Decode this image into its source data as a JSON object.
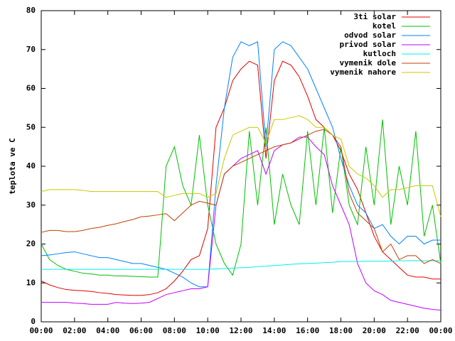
{
  "chart_data": {
    "type": "line",
    "ylabel": "teplota ve C",
    "x": [
      0,
      0.5,
      1,
      1.5,
      2,
      2.5,
      3,
      3.5,
      4,
      4.5,
      5,
      5.5,
      6,
      6.5,
      7,
      7.5,
      8,
      8.5,
      9,
      9.5,
      10,
      10.5,
      11,
      11.5,
      12,
      12.5,
      13,
      13.5,
      14,
      14.5,
      15,
      15.5,
      16,
      16.5,
      17,
      17.5,
      18,
      18.5,
      19,
      19.5,
      20,
      20.5,
      21,
      21.5,
      22,
      22.5,
      23,
      23.5,
      24
    ],
    "xlim": [
      0,
      24
    ],
    "xticks": [
      {
        "value": 0,
        "label": "00:00"
      },
      {
        "value": 2,
        "label": "02:00"
      },
      {
        "value": 4,
        "label": "04:00"
      },
      {
        "value": 6,
        "label": "06:00"
      },
      {
        "value": 8,
        "label": "08:00"
      },
      {
        "value": 10,
        "label": "10:00"
      },
      {
        "value": 12,
        "label": "12:00"
      },
      {
        "value": 14,
        "label": "14:00"
      },
      {
        "value": 16,
        "label": "16:00"
      },
      {
        "value": 18,
        "label": "18:00"
      },
      {
        "value": 20,
        "label": "20:00"
      },
      {
        "value": 22,
        "label": "22:00"
      },
      {
        "value": 24,
        "label": "00:00"
      }
    ],
    "ylim": [
      0,
      80
    ],
    "yticks": [
      0,
      10,
      20,
      30,
      40,
      50,
      60,
      70,
      80
    ],
    "grid": false,
    "legend": "top-right",
    "series": [
      {
        "name": "3ti solar",
        "color": "#e00000",
        "values": [
          10.5,
          9.5,
          8.8,
          8.3,
          8.1,
          8,
          7.8,
          7.5,
          7.3,
          7,
          6.9,
          6.8,
          6.8,
          7,
          7.5,
          8.5,
          10.5,
          13,
          16,
          17,
          24,
          50,
          55,
          62,
          65,
          67,
          66,
          42,
          62,
          67,
          66,
          63,
          58,
          52,
          50,
          48,
          44,
          38,
          34,
          28,
          22,
          18,
          16,
          14,
          12,
          11.5,
          11.5,
          11,
          11
        ]
      },
      {
        "name": "kotel",
        "color": "#00c000",
        "values": [
          20,
          16,
          14.5,
          13.5,
          13,
          12.5,
          12.3,
          12,
          12,
          11.8,
          11.8,
          11.7,
          11.6,
          11.5,
          11.5,
          40,
          45,
          35,
          30,
          48,
          30,
          20,
          15,
          12,
          20,
          49,
          30,
          50,
          25,
          38,
          30,
          25,
          49,
          30,
          50,
          28,
          45,
          30,
          25,
          45,
          30,
          52,
          25,
          40,
          30,
          49,
          22,
          30,
          15
        ]
      },
      {
        "name": "odvod solar",
        "color": "#0080ff",
        "values": [
          17,
          17.2,
          17.5,
          17.8,
          18,
          17.5,
          17,
          16.5,
          16.5,
          16,
          15.5,
          15,
          15,
          14.5,
          14,
          13.5,
          12.5,
          11.5,
          10,
          9,
          9,
          35,
          55,
          68,
          72,
          71,
          72,
          45,
          70,
          72,
          71,
          68,
          65,
          60,
          55,
          50,
          42,
          35,
          30,
          28,
          24,
          25,
          22,
          20,
          22,
          22,
          20,
          21,
          21
        ]
      },
      {
        "name": "privod solar",
        "color": "#c000ff",
        "values": [
          5,
          5,
          5,
          5,
          4.8,
          4.7,
          4.5,
          4.5,
          4.5,
          5,
          4.8,
          4.7,
          4.8,
          5,
          6,
          7,
          7.5,
          8,
          8.5,
          8.5,
          9,
          30,
          38,
          40,
          42,
          43,
          44,
          38,
          44,
          45.5,
          46,
          47.5,
          47.5,
          45,
          43,
          35,
          30,
          25,
          15,
          10,
          8,
          7,
          5.5,
          5,
          4.5,
          4,
          3.5,
          3.2,
          3
        ]
      },
      {
        "name": "kutloch",
        "color": "#00eeee",
        "values": [
          13.5,
          13.5,
          13.5,
          13.5,
          13.5,
          13.5,
          13.5,
          13.5,
          13.5,
          13.5,
          13.5,
          13.5,
          13.5,
          13.5,
          13.5,
          13.5,
          13.5,
          13.5,
          13.5,
          13.5,
          13.5,
          13.6,
          13.7,
          13.8,
          13.9,
          14,
          14.2,
          14.3,
          14.5,
          14.6,
          14.8,
          14.9,
          15,
          15.1,
          15.2,
          15.3,
          15.5,
          15.5,
          15.5,
          15.6,
          15.6,
          15.6,
          15.6,
          15.7,
          15.7,
          15.7,
          15.7,
          15.7,
          15.7
        ]
      },
      {
        "name": "vymenik dole",
        "color": "#c04000",
        "values": [
          23,
          23.5,
          23.5,
          23.2,
          23.2,
          23.5,
          24,
          24.3,
          24.8,
          25.2,
          25.8,
          26.3,
          27,
          27.2,
          27.5,
          27.8,
          26,
          28,
          30,
          31,
          30.5,
          30,
          38,
          40,
          41,
          42,
          43,
          44,
          45,
          45.5,
          46,
          47,
          48,
          49,
          49.5,
          48,
          45,
          33,
          28,
          26,
          24,
          18,
          20,
          16,
          17,
          17,
          15,
          16,
          15
        ]
      },
      {
        "name": "vymenik nahore",
        "color": "#c8c800",
        "values": [
          33.5,
          34,
          34,
          34,
          34,
          33.8,
          33.5,
          33.5,
          33.5,
          33.5,
          33.5,
          33.5,
          33.5,
          33.5,
          33.5,
          32,
          32.5,
          33,
          33,
          33,
          32,
          33,
          42,
          48,
          49,
          50,
          50,
          46,
          52,
          52,
          52.5,
          53,
          52,
          50,
          50,
          48,
          47,
          40,
          38,
          37,
          35,
          32,
          34,
          34,
          34.5,
          35,
          35,
          35,
          27
        ]
      }
    ]
  }
}
